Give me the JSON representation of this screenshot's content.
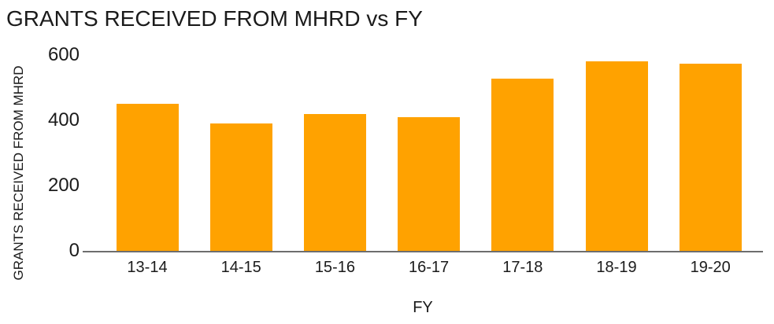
{
  "title": "GRANTS RECEIVED FROM MHRD vs FY",
  "colors": {
    "bar": "#FFA200",
    "text": "#1B1B1B",
    "axis_line": "#6E6E6E",
    "background": "#FFFFFF"
  },
  "chart_data": {
    "type": "bar",
    "title": "GRANTS RECEIVED FROM MHRD vs FY",
    "xlabel": "FY",
    "ylabel": "GRANTS RECEIVED FROM MHRD",
    "categories": [
      "13-14",
      "14-15",
      "15-16",
      "16-17",
      "17-18",
      "18-19",
      "19-20"
    ],
    "values": [
      450,
      390,
      420,
      410,
      527,
      581,
      574
    ],
    "ylim": [
      0,
      600
    ],
    "yticks": [
      0,
      200,
      400,
      600
    ],
    "grid": false,
    "legend": false,
    "bar_color": "#FFA200"
  }
}
